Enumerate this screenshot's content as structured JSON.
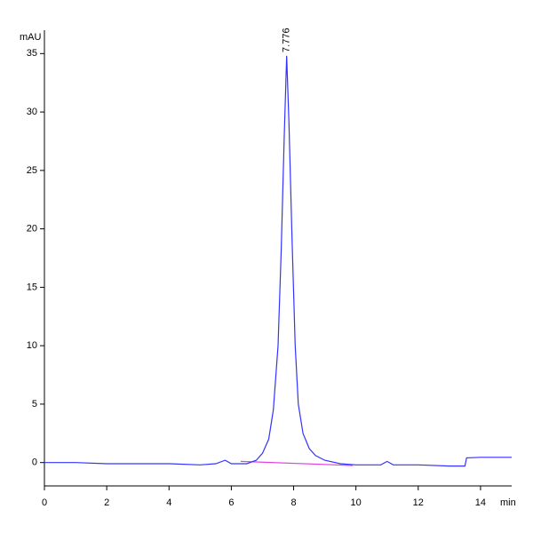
{
  "chart_data": {
    "type": "line",
    "y_label": "mAU",
    "x_label": "min",
    "x": [
      0,
      1,
      2,
      3,
      4,
      5,
      5.5,
      5.8,
      6.0,
      6.5,
      6.8,
      7.0,
      7.2,
      7.35,
      7.5,
      7.6,
      7.7,
      7.776,
      7.85,
      7.95,
      8.05,
      8.15,
      8.3,
      8.5,
      8.7,
      9.0,
      9.5,
      10.0,
      10.8,
      11.0,
      11.2,
      12.0,
      13.0,
      13.5,
      13.55,
      14.0,
      15.0
    ],
    "values": [
      0,
      0,
      -0.1,
      -0.1,
      -0.1,
      -0.2,
      -0.1,
      0.2,
      -0.1,
      -0.1,
      0.2,
      0.8,
      2.0,
      4.5,
      10,
      18,
      28,
      34.8,
      29,
      19,
      10,
      5,
      2.5,
      1.2,
      0.6,
      0.2,
      -0.1,
      -0.2,
      -0.2,
      0.1,
      -0.2,
      -0.2,
      -0.3,
      -0.3,
      0.4,
      0.45,
      0.45
    ],
    "color": "#3333ff",
    "baseline": {
      "x": [
        6.3,
        9.9
      ],
      "values": [
        0.1,
        -0.25
      ],
      "color": "#e040e0"
    },
    "annotations": [
      {
        "text": "7.776",
        "x": 7.776,
        "y": 34.8
      }
    ],
    "xlim": [
      0,
      15
    ],
    "ylim": [
      -2,
      37
    ],
    "xticks": [
      0,
      2,
      4,
      6,
      8,
      10,
      12,
      14
    ],
    "yticks": [
      0,
      5,
      10,
      15,
      20,
      25,
      30,
      35
    ]
  }
}
